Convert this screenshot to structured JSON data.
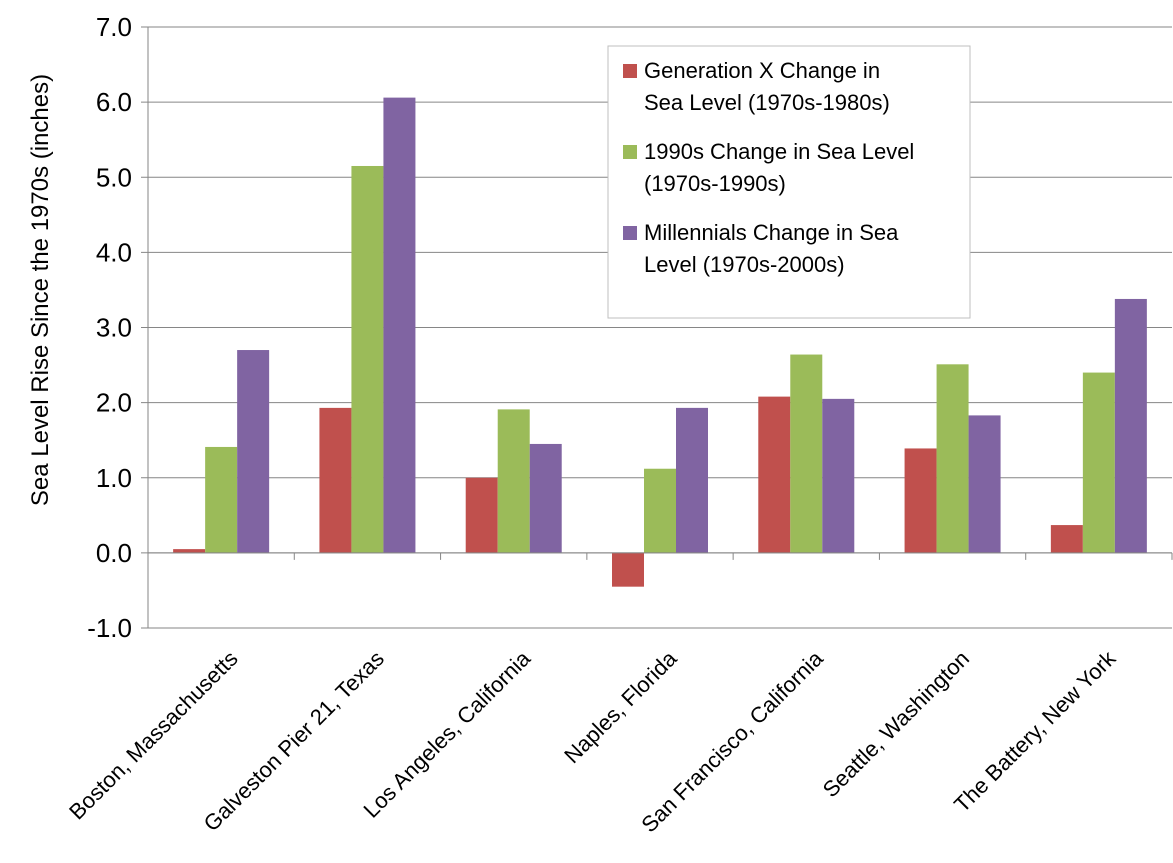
{
  "chart_data": {
    "type": "bar",
    "title": "",
    "xlabel": "",
    "ylabel": "Sea Level Rise Since the 1970s (inches)",
    "ylim": [
      -1.0,
      7.0
    ],
    "yticks": [
      "-1.0",
      "0.0",
      "1.0",
      "2.0",
      "3.0",
      "4.0",
      "5.0",
      "6.0",
      "7.0"
    ],
    "grid": true,
    "legend_position": "top-right",
    "categories": [
      "Boston, Massachusetts",
      "Galveston Pier 21, Texas",
      "Los Angeles, California",
      "Naples, Florida",
      "San Francisco, California",
      "Seattle, Washington",
      "The Battery, New York"
    ],
    "series": [
      {
        "name": "Generation X Change in Sea Level (1970s-1980s)",
        "legend_lines": [
          "Generation X Change in",
          "Sea Level (1970s-1980s)"
        ],
        "color": "#c0504d",
        "values": [
          0.05,
          1.93,
          1.0,
          -0.45,
          2.08,
          1.39,
          0.37
        ]
      },
      {
        "name": "1990s Change in Sea Level (1970s-1990s)",
        "legend_lines": [
          "1990s Change in Sea Level",
          "(1970s-1990s)"
        ],
        "color": "#9bbb59",
        "values": [
          1.41,
          5.15,
          1.91,
          1.12,
          2.64,
          2.51,
          2.4
        ]
      },
      {
        "name": "Millennials Change in Sea Level (1970s-2000s)",
        "legend_lines": [
          "Millennials Change in Sea",
          "Level (1970s-2000s)"
        ],
        "color": "#8064a2",
        "values": [
          2.7,
          6.06,
          1.45,
          1.93,
          2.05,
          1.83,
          3.38
        ]
      }
    ]
  }
}
